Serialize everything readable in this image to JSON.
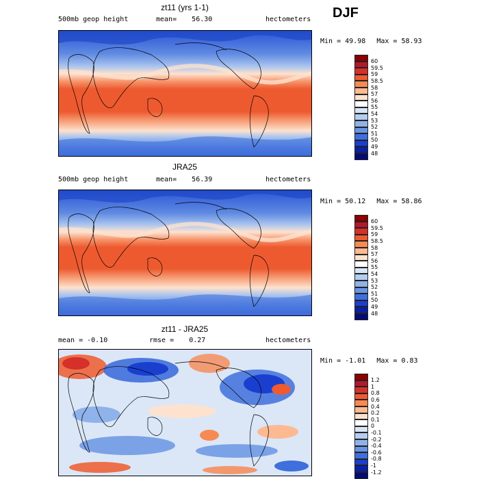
{
  "season": "DJF",
  "panels": [
    {
      "title": "zt11 (yrs 1-1)",
      "left_label": "500mb geop height",
      "mean_label": "mean=",
      "mean_value": "56.30",
      "units": "hectometers",
      "min_label": "Min =",
      "min_value": "49.98",
      "max_label": "Max =",
      "max_value": "58.93",
      "colorbar": {
        "labels": [
          "60",
          "59.5",
          "59",
          "58.5",
          "58",
          "57",
          "56",
          "55",
          "54",
          "53",
          "52",
          "51",
          "50",
          "49",
          "48"
        ],
        "colors": [
          "#8b0000",
          "#b2182b",
          "#d6302a",
          "#ef5a2e",
          "#f78a54",
          "#fdb991",
          "#fde2cf",
          "#ffffff",
          "#d8e6f6",
          "#b3cdf0",
          "#8fb2ea",
          "#6a95e4",
          "#3f6fdc",
          "#1a3fcf",
          "#0a1fa5",
          "#050c70"
        ]
      }
    },
    {
      "title": "JRA25",
      "left_label": "500mb geop height",
      "mean_label": "mean=",
      "mean_value": "56.39",
      "units": "hectometers",
      "min_label": "Min =",
      "min_value": "50.12",
      "max_label": "Max =",
      "max_value": "58.86",
      "colorbar": {
        "labels": [
          "60",
          "59.5",
          "59",
          "58.5",
          "58",
          "57",
          "56",
          "55",
          "54",
          "53",
          "52",
          "51",
          "50",
          "49",
          "48"
        ],
        "colors": [
          "#8b0000",
          "#b2182b",
          "#d6302a",
          "#ef5a2e",
          "#f78a54",
          "#fdb991",
          "#fde2cf",
          "#ffffff",
          "#d8e6f6",
          "#b3cdf0",
          "#8fb2ea",
          "#6a95e4",
          "#3f6fdc",
          "#1a3fcf",
          "#0a1fa5",
          "#050c70"
        ]
      }
    },
    {
      "title": "zt11 - JRA25",
      "left_label": "mean =   -0.10",
      "mean_label": "rmse =",
      "mean_value": "0.27",
      "units": "hectometers",
      "min_label": "Min =",
      "min_value": "-1.01",
      "max_label": "Max =",
      "max_value": "0.83",
      "colorbar": {
        "labels": [
          "1.2",
          "1",
          "0.8",
          "0.6",
          "0.4",
          "0.2",
          "0.1",
          "0",
          "-0.1",
          "-0.2",
          "-0.4",
          "-0.6",
          "-0.8",
          "-1",
          "-1.2"
        ],
        "colors": [
          "#8b0000",
          "#b2182b",
          "#d6302a",
          "#ef5a2e",
          "#f78a54",
          "#fdb991",
          "#fde2cf",
          "#ffffff",
          "#d8e6f6",
          "#b3cdf0",
          "#8fb2ea",
          "#6a95e4",
          "#3f6fdc",
          "#1a3fcf",
          "#0a1fa5",
          "#050c70"
        ]
      }
    }
  ]
}
